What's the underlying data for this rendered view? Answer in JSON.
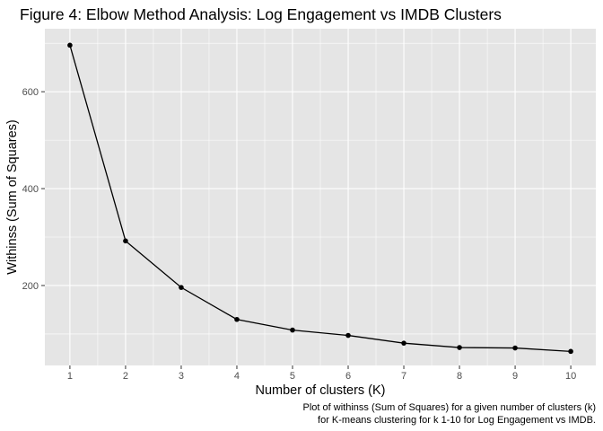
{
  "chart_data": {
    "type": "line",
    "title": "Figure 4: Elbow Method Analysis: Log Engagement vs IMDB Clusters",
    "xlabel": "Number of clusters (K)",
    "ylabel": "Withinss (Sum of Squares)",
    "caption": [
      "Plot of withinss (Sum of Squares) for a given number of clusters (k)",
      "for K-means clustering for k 1-10 for Log Engagement vs IMDB."
    ],
    "x": [
      1,
      2,
      3,
      4,
      5,
      6,
      7,
      8,
      9,
      10
    ],
    "y": [
      696,
      292,
      196,
      130,
      108,
      97,
      81,
      72,
      71,
      64
    ],
    "xlim": [
      0.55,
      10.45
    ],
    "ylim": [
      35,
      730
    ],
    "x_ticks": [
      1,
      2,
      3,
      4,
      5,
      6,
      7,
      8,
      9,
      10
    ],
    "x_tick_labels": [
      "1",
      "2",
      "3",
      "4",
      "5",
      "6",
      "7",
      "8",
      "9",
      "10"
    ],
    "y_ticks": [
      200,
      400,
      600
    ],
    "y_tick_labels": [
      "200",
      "400",
      "600"
    ],
    "grid": true,
    "colors": {
      "panel": "#e5e5e5",
      "grid": "#ffffff",
      "line": "#000000",
      "point": "#000000"
    }
  }
}
